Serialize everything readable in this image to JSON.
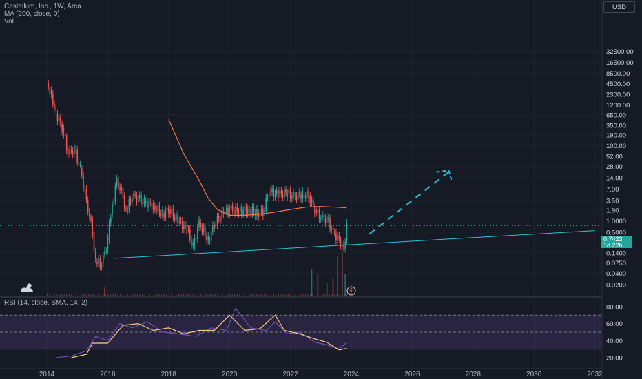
{
  "legend": {
    "title": "Castellum, Inc., 1W, Arca",
    "ma": "MA (200, close, 0)",
    "vol": "Vol",
    "rsi": "RSI (14, close, SMA, 14, 2)"
  },
  "currency": "USD",
  "last_price": {
    "value": "0.7423",
    "countdown": "1d 22h"
  },
  "colors": {
    "background": "#161a25",
    "up": "#26a69a",
    "down": "#ef5350",
    "ma": "#f57c4a",
    "trendline": "#26c6da",
    "rsi_band": "#7e57c2",
    "rsi_line": "#f9c98b"
  },
  "chart_data": [
    {
      "type": "line",
      "subtype": "candlestick",
      "scale": "log",
      "x_tick_labels": [
        "2014",
        "2016",
        "2018",
        "2020",
        "2022",
        "2024",
        "2026",
        "2028",
        "2030",
        "2032"
      ],
      "y_tick_labels": [
        "32500.00",
        "16500.00",
        "8500.00",
        "4500.00",
        "2300.00",
        "1200.00",
        "650.00",
        "350.00",
        "190.00",
        "100.00",
        "52.00",
        "28.00",
        "14.00",
        "7.00",
        "3.50",
        "1.90",
        "1.0000",
        "0.5000",
        "0.1400",
        "0.0750",
        "0.0400",
        "0.0200"
      ],
      "series": [
        {
          "name": "Castellum, Inc., 1W, Arca",
          "x": [
            2014.0,
            2014.15,
            2014.3,
            2014.5,
            2014.7,
            2014.9,
            2015.1,
            2015.3,
            2015.5,
            2015.6,
            2015.8,
            2016.0,
            2016.1,
            2016.3,
            2016.5,
            2016.6,
            2016.8,
            2017.0,
            2017.2,
            2017.5,
            2017.8,
            2018.0,
            2018.3,
            2018.6,
            2018.8,
            2019.0,
            2019.3,
            2019.5,
            2019.8,
            2020.0,
            2020.3,
            2020.6,
            2020.9,
            2021.1,
            2021.3,
            2021.6,
            2021.9,
            2022.1,
            2022.4,
            2022.6,
            2022.8,
            2023.0,
            2023.2,
            2023.4,
            2023.6,
            2023.75,
            2023.85
          ],
          "close": [
            4500,
            2400,
            700,
            300,
            60,
            80,
            25,
            3.5,
            0.5,
            0.08,
            0.07,
            0.3,
            1.5,
            12,
            4.5,
            1.8,
            4.5,
            4,
            3,
            2.5,
            1.5,
            2,
            1,
            0.6,
            0.2,
            0.9,
            0.3,
            0.8,
            1.6,
            2,
            1.8,
            2,
            1.6,
            1.7,
            6,
            5,
            5.5,
            4.5,
            5,
            4.8,
            1.9,
            1.2,
            1.1,
            0.5,
            0.3,
            0.18,
            0.74
          ]
        },
        {
          "name": "MA (200, close, 0)",
          "x": [
            2018.0,
            2018.5,
            2019.0,
            2019.3,
            2019.6,
            2020.0,
            2020.5,
            2021.0,
            2021.5,
            2022.0,
            2022.5,
            2023.0,
            2023.5,
            2023.85
          ],
          "values": [
            500,
            60,
            12,
            4,
            2,
            1.4,
            1.4,
            1.5,
            1.7,
            2,
            2.3,
            2.4,
            2.3,
            2.2
          ]
        },
        {
          "name": "trendline",
          "x": [
            2016.2,
            2032.0
          ],
          "values": [
            0.1,
            0.55
          ]
        },
        {
          "name": "projection",
          "x": [
            2024.6,
            2027.2
          ],
          "values": [
            0.45,
            20
          ]
        }
      ]
    },
    {
      "type": "bar",
      "name": "Vol",
      "x": [
        2015.9,
        2022.7,
        2022.9,
        2023.2,
        2023.4,
        2023.55,
        2023.7,
        2023.8
      ],
      "values": [
        0.2,
        0.6,
        0.5,
        0.3,
        0.4,
        0.9,
        1.0,
        0.5
      ]
    },
    {
      "type": "line",
      "name": "RSI (14, close, SMA, 14, 2)",
      "y_tick_labels": [
        "80.00",
        "60.00",
        "40.00",
        "20.00"
      ],
      "ylim": [
        10,
        90
      ],
      "bands": [
        30,
        50,
        70
      ],
      "series": [
        {
          "name": "RSI",
          "x": [
            2014.3,
            2014.8,
            2015.3,
            2015.6,
            2016.0,
            2016.4,
            2016.8,
            2017.3,
            2017.8,
            2018.3,
            2018.9,
            2019.4,
            2019.9,
            2020.2,
            2020.7,
            2021.2,
            2021.5,
            2021.9,
            2022.3,
            2022.8,
            2023.2,
            2023.6,
            2023.85
          ],
          "values": [
            20,
            22,
            28,
            45,
            40,
            60,
            55,
            62,
            50,
            48,
            45,
            55,
            52,
            78,
            55,
            52,
            62,
            48,
            50,
            38,
            35,
            30,
            38
          ]
        },
        {
          "name": "SMA",
          "x": [
            2014.8,
            2015.3,
            2015.5,
            2016.0,
            2016.5,
            2017.0,
            2017.5,
            2018.0,
            2018.5,
            2019.0,
            2019.5,
            2020.0,
            2020.5,
            2021.0,
            2021.5,
            2021.8,
            2022.3,
            2022.8,
            2023.2,
            2023.6,
            2023.85
          ],
          "values": [
            20,
            24,
            37,
            37,
            58,
            60,
            52,
            55,
            48,
            52,
            52,
            70,
            52,
            54,
            70,
            52,
            48,
            42,
            38,
            29,
            31
          ]
        }
      ]
    }
  ]
}
